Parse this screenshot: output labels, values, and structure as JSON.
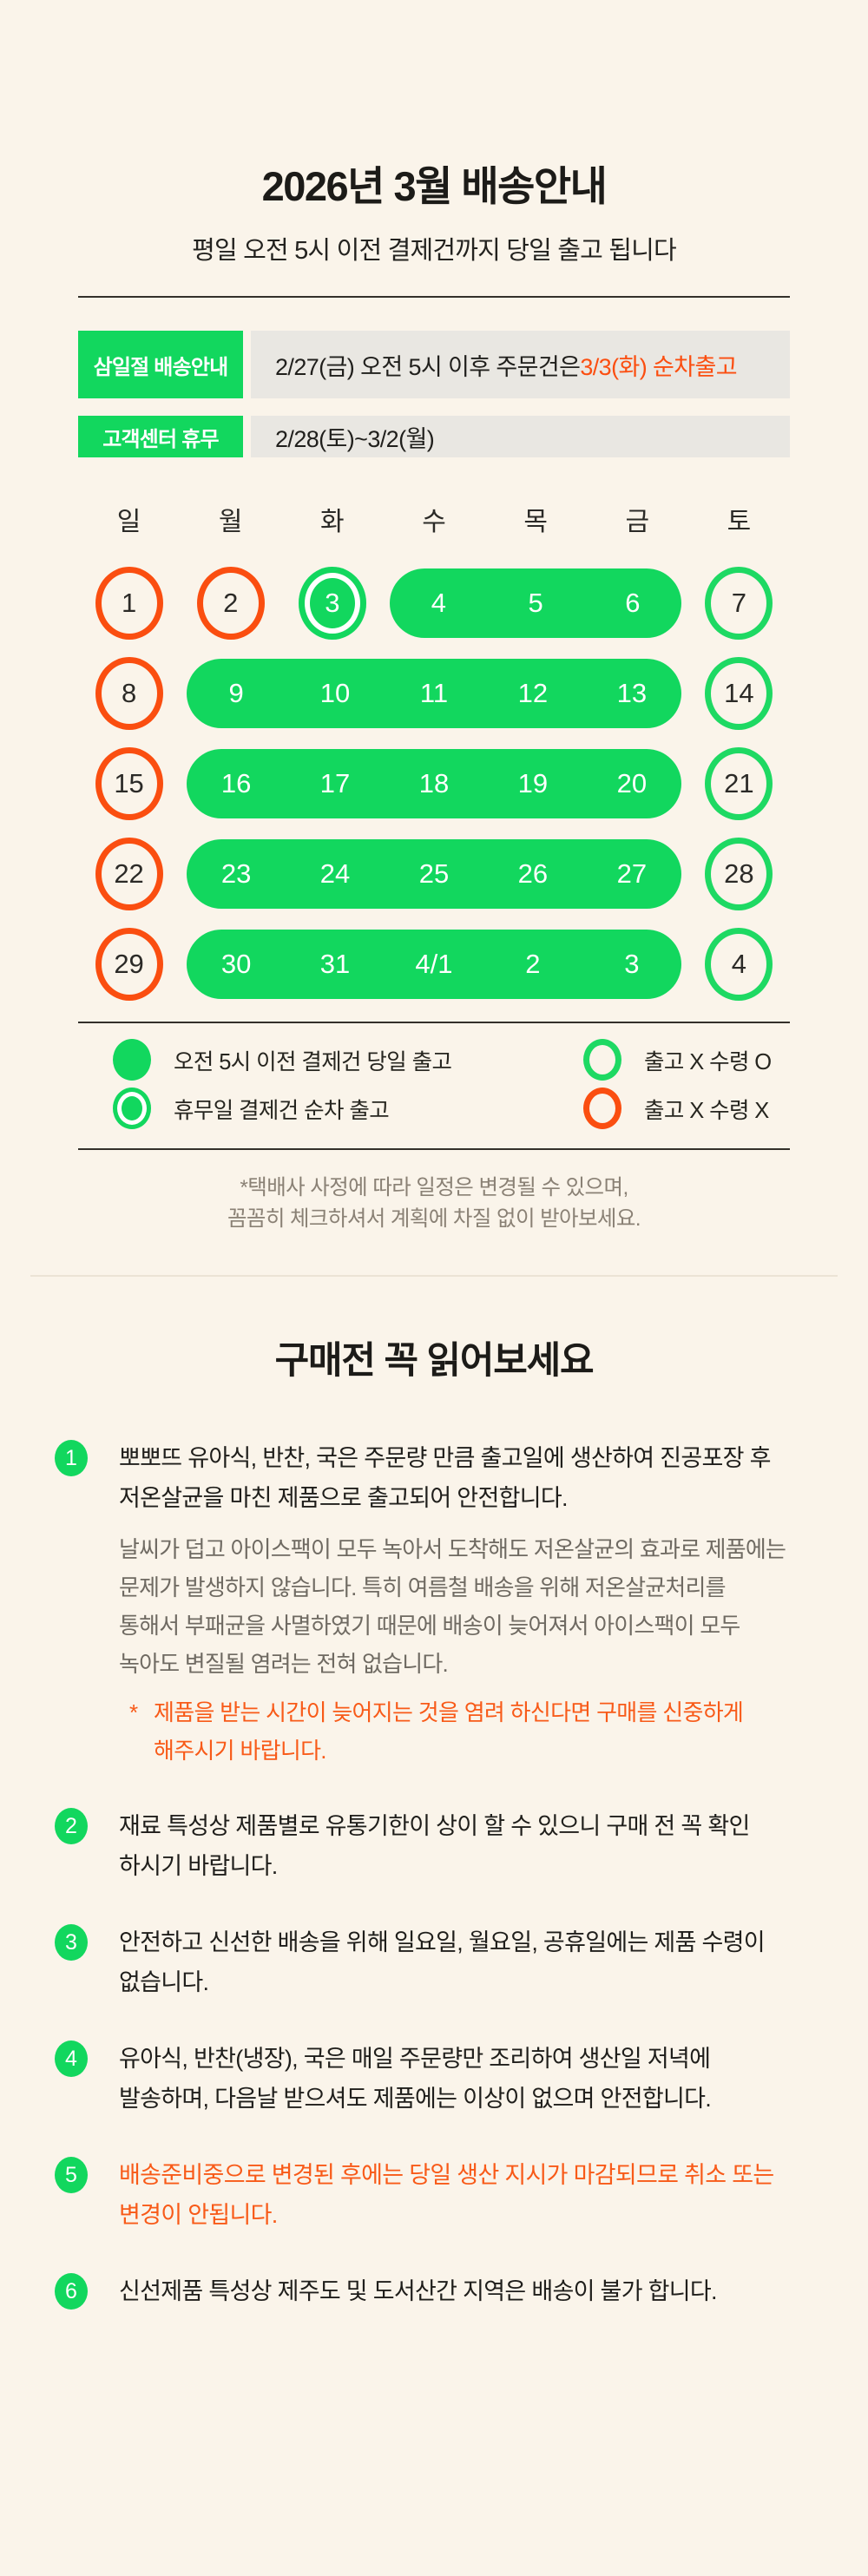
{
  "colors": {
    "background": "#FAF4EA",
    "green": "#12D75E",
    "green_outline": "#1ED963",
    "orange": "#FB4E10",
    "orange_text": "#F85A18",
    "gray_box": "#E9E7E2",
    "text_dark": "#1F1E1B",
    "text_gray": "#6F6A62",
    "footnote_gray": "#8A8175"
  },
  "header": {
    "title": "2026년 3월 배송안내",
    "subtitle": "평일 오전 5시 이전 결제건까지 당일 출고 됩니다"
  },
  "notices": [
    {
      "label": "삼일절 배송안내",
      "text": "2/27(금) 오전 5시 이후 주문건은 ",
      "highlight": "3/3(화) 순차출고"
    },
    {
      "label": "고객센터 휴무",
      "text": "2/28(토)~3/2(월)",
      "highlight": ""
    }
  ],
  "calendar": {
    "weekdays": [
      "일",
      "월",
      "화",
      "수",
      "목",
      "금",
      "토"
    ],
    "rows": [
      [
        {
          "d": "1",
          "t": "closed"
        },
        {
          "d": "2",
          "t": "closed"
        },
        {
          "d": "3",
          "t": "holiday"
        },
        {
          "pill": [
            "4",
            "5",
            "6"
          ]
        },
        {
          "d": "7",
          "t": "pickup"
        }
      ],
      [
        {
          "d": "8",
          "t": "closed"
        },
        {
          "pill": [
            "9",
            "10",
            "11",
            "12",
            "13"
          ]
        },
        {
          "d": "14",
          "t": "pickup"
        }
      ],
      [
        {
          "d": "15",
          "t": "closed"
        },
        {
          "pill": [
            "16",
            "17",
            "18",
            "19",
            "20"
          ]
        },
        {
          "d": "21",
          "t": "pickup"
        }
      ],
      [
        {
          "d": "22",
          "t": "closed"
        },
        {
          "pill": [
            "23",
            "24",
            "25",
            "26",
            "27"
          ]
        },
        {
          "d": "28",
          "t": "pickup"
        }
      ],
      [
        {
          "d": "29",
          "t": "closed"
        },
        {
          "pill": [
            "30",
            "31",
            "4/1",
            "2",
            "3"
          ]
        },
        {
          "d": "4",
          "t": "pickup"
        }
      ]
    ],
    "legend": [
      {
        "type": "ship",
        "label": "오전 5시 이전 결제건 당일 출고"
      },
      {
        "type": "pickup",
        "label": "출고 X 수령 O"
      },
      {
        "type": "holiday",
        "label": "휴무일 결제건 순차 출고"
      },
      {
        "type": "closed",
        "label": "출고 X 수령 X"
      }
    ]
  },
  "footnote": {
    "line1": "*택배사 사정에 따라 일정은 변경될 수 있으며,",
    "line2": "꼼꼼히 체크하셔서 계획에 차질 없이 받아보세요."
  },
  "readme": {
    "title": "구매전 꼭 읽어보세요",
    "items": [
      {
        "num": "1",
        "text": "뽀뽀뜨 유아식, 반찬, 국은 주문량 만큼 출고일에 생산하여 진공포장 후 저온살균을 마친 제품으로 출고되어 안전합니다.",
        "sub": "날씨가 덥고 아이스팩이 모두 녹아서 도착해도 저온살균의 효과로 제품에는 문제가 발생하지 않습니다. 특히 여름철 배송을 위해 저온살균처리를 통해서 부패균을 사멸하였기 때문에 배송이 늦어져서 아이스팩이 모두 녹아도 변질될 염려는 전혀 없습니다.",
        "note_marker": "*",
        "note": "제품을 받는 시간이 늦어지는 것을 염려 하신다면 구매를 신중하게 해주시기 바랍니다."
      },
      {
        "num": "2",
        "text": "재료 특성상 제품별로 유통기한이 상이 할 수 있으니 구매 전 꼭 확인 하시기 바랍니다."
      },
      {
        "num": "3",
        "text": "안전하고 신선한 배송을 위해 일요일, 월요일, 공휴일에는 제품 수령이 없습니다."
      },
      {
        "num": "4",
        "text": "유아식, 반찬(냉장), 국은 매일 주문량만 조리하여 생산일 저녁에 발송하며, 다음날 받으셔도 제품에는 이상이 없으며 안전합니다."
      },
      {
        "num": "5",
        "text": "배송준비중으로 변경된 후에는 당일 생산 지시가 마감되므로 취소 또는 변경이 안됩니다.",
        "emphasis": true
      },
      {
        "num": "6",
        "text": "신선제품 특성상 제주도 및 도서산간 지역은 배송이 불가 합니다."
      }
    ]
  }
}
